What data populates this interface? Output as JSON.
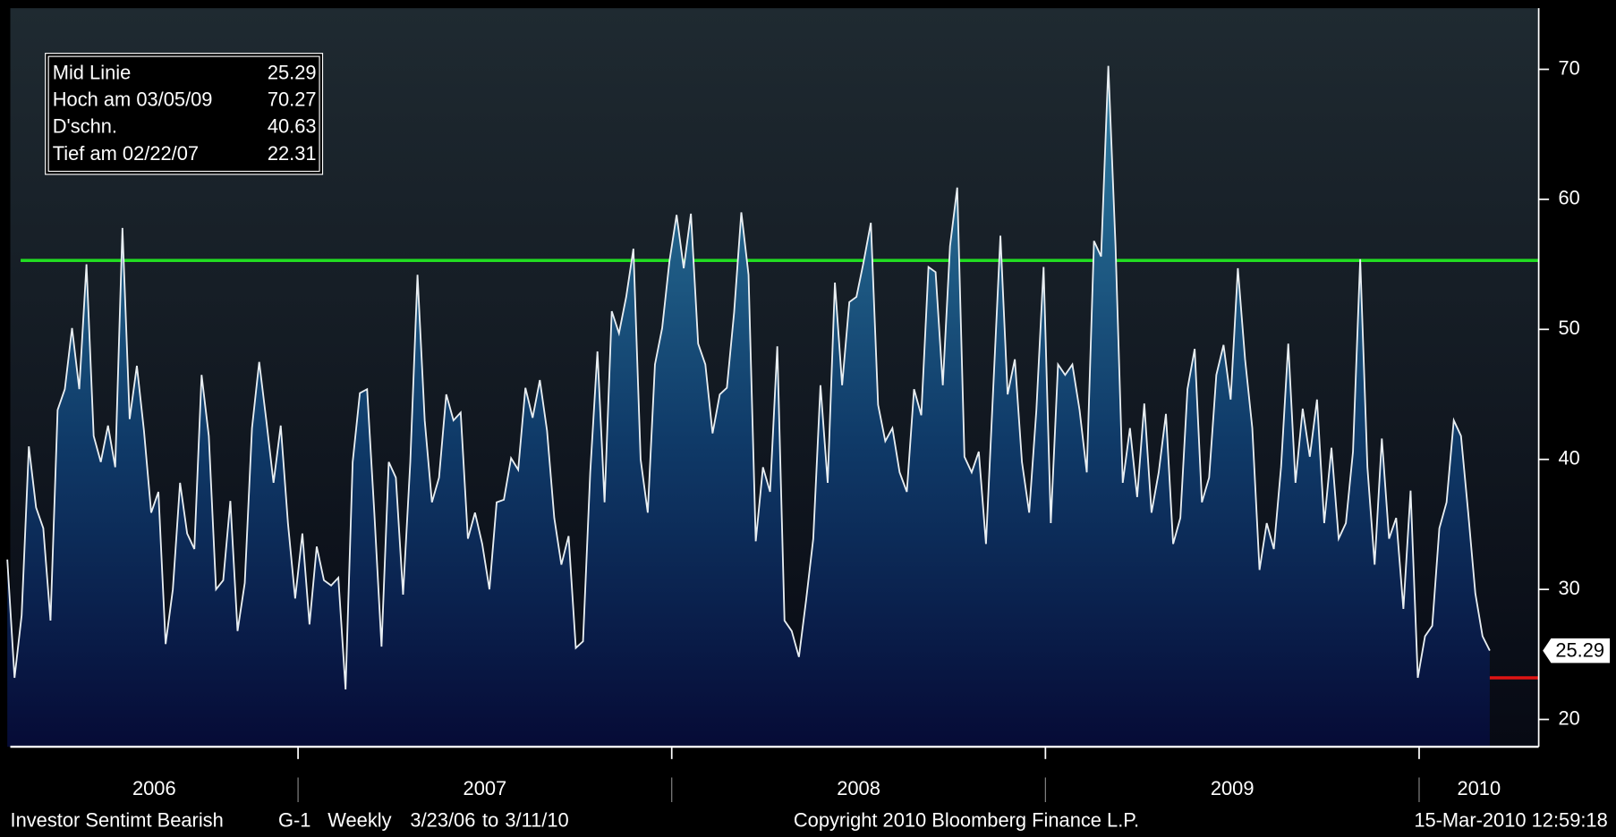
{
  "chart_data": {
    "type": "area",
    "values": [
      32.3,
      23.2,
      28,
      41,
      36.3,
      34.7,
      27.6,
      43.8,
      45.4,
      50.1,
      45.4,
      55,
      41.8,
      39.8,
      42.6,
      39.4,
      57.8,
      43.1,
      47.2,
      42.2,
      35.9,
      37.5,
      25.8,
      30,
      38.2,
      34.3,
      33.1,
      46.5,
      41.8,
      30,
      30.7,
      36.8,
      26.8,
      30.5,
      42.4,
      47.5,
      43,
      38.2,
      42.6,
      35.1,
      29.3,
      34.3,
      27.3,
      33.3,
      30.7,
      30.3,
      30.9,
      22.31,
      39.8,
      45.1,
      45.4,
      35.9,
      25.6,
      39.8,
      38.6,
      29.6,
      39.8,
      54.2,
      43,
      36.7,
      38.6,
      45,
      43,
      43.6,
      33.9,
      35.9,
      33.5,
      30,
      36.7,
      36.9,
      40.1,
      39.2,
      45.5,
      43.2,
      46.1,
      42.2,
      35.5,
      31.9,
      34.1,
      25.5,
      26,
      39,
      48.3,
      36.7,
      51.4,
      49.7,
      52.5,
      56.2,
      40,
      35.9,
      47.3,
      50.1,
      55.2,
      58.8,
      54.7,
      58.9,
      48.9,
      47.3,
      42,
      45,
      45.5,
      51.3,
      59,
      54.2,
      33.7,
      39.4,
      37.5,
      48.7,
      27.6,
      26.8,
      24.8,
      29.2,
      33.9,
      45.7,
      38.2,
      53.6,
      45.7,
      52.1,
      52.5,
      55.2,
      58.2,
      44.2,
      41.4,
      42.4,
      39,
      37.5,
      45.4,
      43.4,
      54.8,
      54.4,
      45.7,
      56.4,
      60.9,
      40.2,
      39,
      40.6,
      33.5,
      45.4,
      57.2,
      45,
      47.7,
      39.8,
      35.9,
      43.8,
      54.8,
      35.1,
      47.3,
      46.5,
      47.3,
      43.8,
      39,
      56.8,
      55.6,
      70.27,
      56.4,
      38.2,
      42.4,
      37.1,
      44.3,
      35.9,
      39,
      43.5,
      33.5,
      35.5,
      45.4,
      48.5,
      36.7,
      38.6,
      46.5,
      48.8,
      44.6,
      54.7,
      47.7,
      42.4,
      31.5,
      35.1,
      33.1,
      39.4,
      48.9,
      38.2,
      43.9,
      40.2,
      44.6,
      35.1,
      40.9,
      33.9,
      35.1,
      40.6,
      55.4,
      39.4,
      31.9,
      41.6,
      33.9,
      35.5,
      28.5,
      37.6,
      23.2,
      26.4,
      27.2,
      34.7,
      36.7,
      43,
      41.8,
      35.9,
      29.7,
      26.4,
      25.29
    ],
    "line_color": "#e8eef2",
    "ylim": [
      17.9,
      74.7
    ],
    "yticks": [
      20,
      30,
      40,
      50,
      60,
      70
    ],
    "xlim": [
      2006.23,
      2010.32
    ],
    "xticks": [
      2007,
      2008,
      2009,
      2010
    ],
    "year_labels": [
      2006,
      2007,
      2008,
      2009,
      2010
    ],
    "hlines": [
      {
        "value": 55.3,
        "color": "#22dd22"
      },
      {
        "value": 23.2,
        "color": "#e01414"
      }
    ],
    "stats": [
      {
        "label": "Mid Linie",
        "value": 25.29
      },
      {
        "label": "Hoch am 03/05/09",
        "value": 70.27
      },
      {
        "label": "D'schn.",
        "value": 40.63
      },
      {
        "label": "Tief am 02/22/07",
        "value": 22.31
      }
    ],
    "footer": {
      "security": "Investor Sentimt Bearish",
      "page": "G-1",
      "frequency": "Weekly",
      "start": "3/23/06",
      "range_word": "to",
      "end": "3/11/10",
      "copyright": "Copyright 2010 Bloomberg Finance L.P.",
      "timestamp": "15-Mar-2010 12:59:18"
    }
  }
}
